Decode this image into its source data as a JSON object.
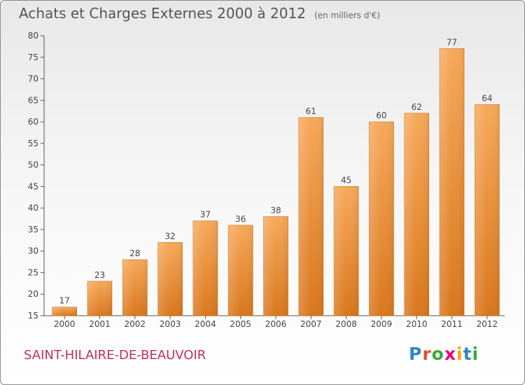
{
  "header": {
    "title": "Achats et Charges Externes 2000 à 2012",
    "subtitle": "(en milliers d'€)"
  },
  "footer": {
    "commune": "SAINT-HILAIRE-DE-BEAUVOIR",
    "brand": "Proxiti",
    "brand_colors": [
      "#2f86c8",
      "#e0552a",
      "#3aaa35",
      "#e6007e",
      "#f2a900",
      "#2f86c8",
      "#3aaa35"
    ]
  },
  "chart_data": {
    "type": "bar",
    "categories": [
      "2000",
      "2001",
      "2002",
      "2003",
      "2004",
      "2005",
      "2006",
      "2007",
      "2008",
      "2009",
      "2010",
      "2011",
      "2012"
    ],
    "values": [
      17,
      23,
      28,
      32,
      37,
      36,
      38,
      61,
      45,
      60,
      62,
      77,
      64
    ],
    "ylim": [
      15,
      80
    ],
    "yticks": [
      15,
      20,
      25,
      30,
      35,
      40,
      45,
      50,
      55,
      60,
      65,
      70,
      75,
      80
    ],
    "grid": false,
    "bar_color_top": "#f7a95a",
    "bar_color_bottom": "#d9771c"
  }
}
